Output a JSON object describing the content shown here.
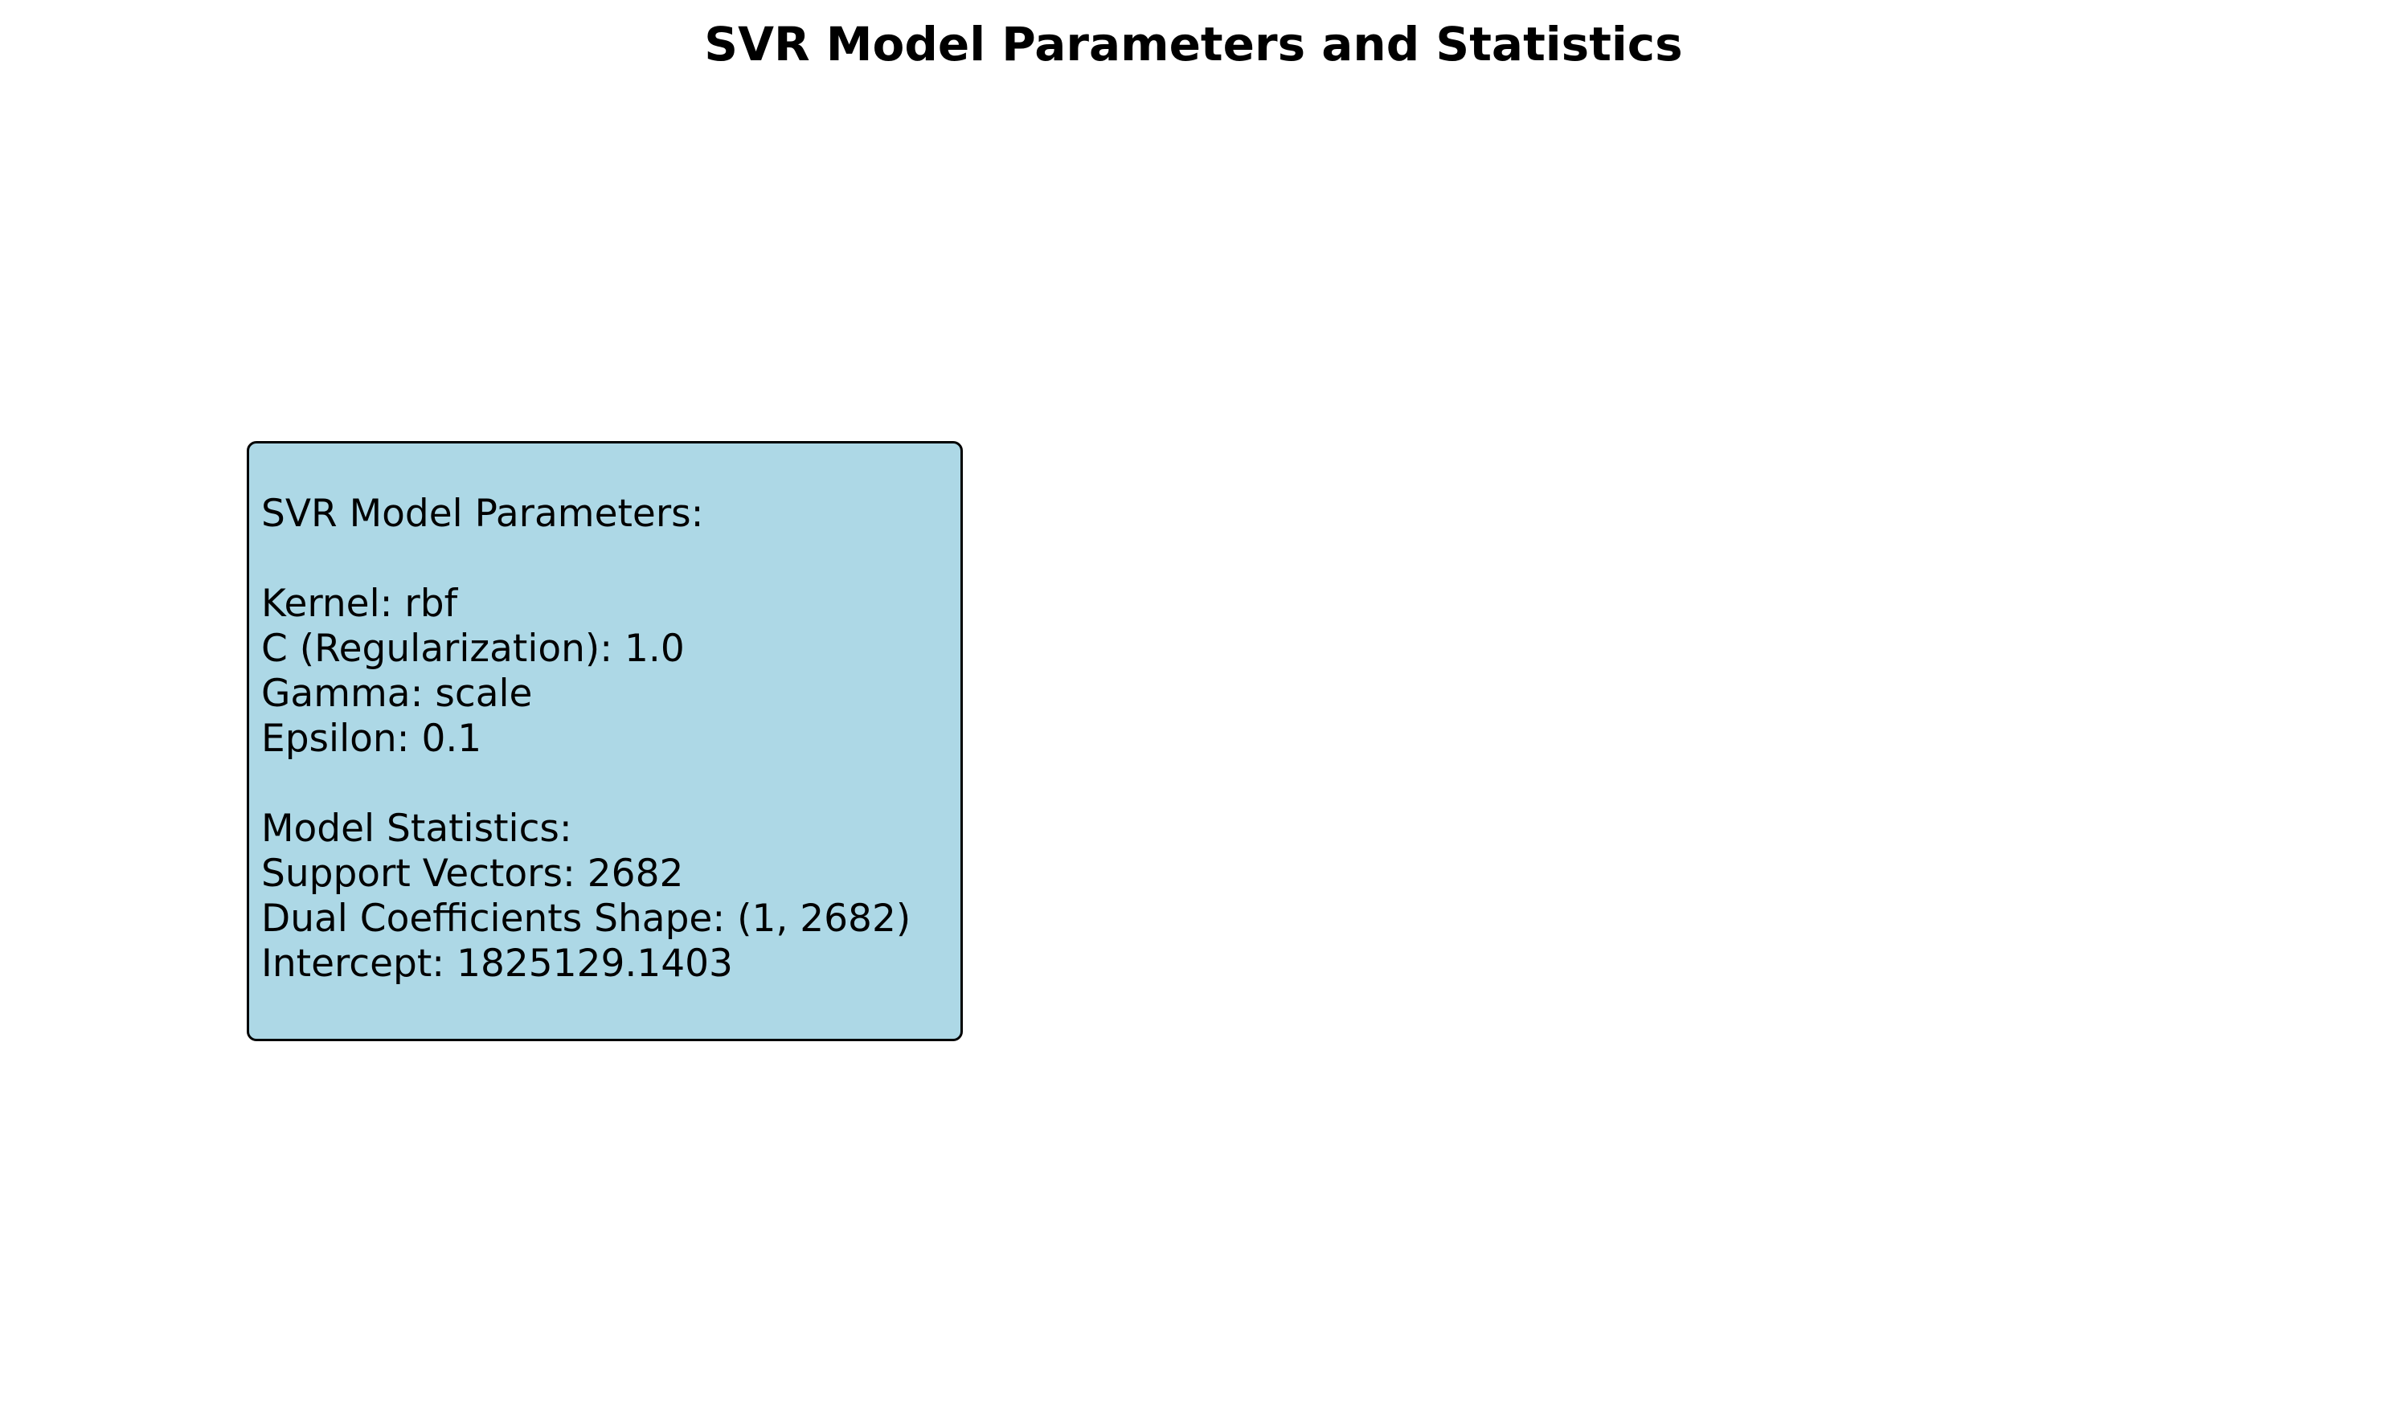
{
  "figure": {
    "title": "SVR Model Parameters and Statistics",
    "box_color": "#add8e6",
    "border_color": "#000000"
  },
  "parameters": {
    "heading": "SVR Model Parameters:",
    "kernel": "Kernel: rbf",
    "c": "C (Regularization): 1.0",
    "gamma": "Gamma: scale",
    "epsilon": "Epsilon: 0.1"
  },
  "statistics": {
    "heading": "Model Statistics:",
    "support_vectors": "Support Vectors: 2682",
    "dual_coef_shape": "Dual Coefficients Shape: (1, 2682)",
    "intercept": "Intercept: 1825129.1403"
  }
}
